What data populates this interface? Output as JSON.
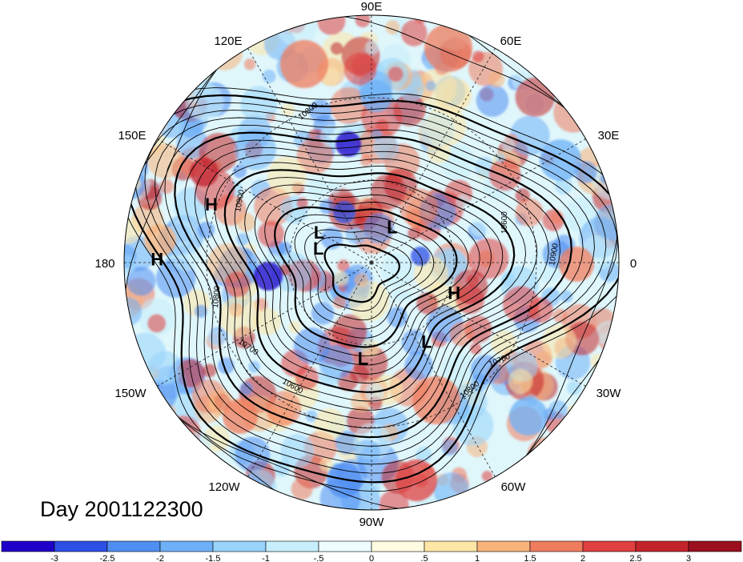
{
  "map": {
    "day_label": "Day 2001122300",
    "longitude_labels": [
      "90E",
      "60E",
      "30E",
      "0",
      "30W",
      "60W",
      "90W",
      "120W",
      "150W",
      "180",
      "150E",
      "120E"
    ],
    "pressure_centers": [
      {
        "label": "H",
        "lon": 160,
        "lat": 28
      },
      {
        "label": "H",
        "lon": 179,
        "lat": 12
      },
      {
        "label": "L",
        "lon": 150,
        "lat": 68
      },
      {
        "label": "L",
        "lon": 165,
        "lat": 70
      },
      {
        "label": "L",
        "lon": 60,
        "lat": 75
      },
      {
        "label": "H",
        "lon": -20,
        "lat": 58
      },
      {
        "label": "L",
        "lon": -55,
        "lat": 55
      },
      {
        "label": "L",
        "lon": -95,
        "lat": 55
      }
    ],
    "contour_labels": [
      "10800",
      "10900",
      "10800",
      "10700",
      "10600",
      "10600",
      "10900",
      "10700",
      "10800"
    ],
    "contour_levels": [
      10600,
      10700,
      10800,
      10900
    ],
    "palette": [
      "#1e00c8",
      "#2d4fe6",
      "#4f8ef2",
      "#6eb0f7",
      "#97d3fb",
      "#c6eefc",
      "#eefcff",
      "#fffbe0",
      "#fde6a6",
      "#f8b37a",
      "#f07c5e",
      "#e04040",
      "#c3242b",
      "#9b0f1e"
    ]
  },
  "colorbar": {
    "tick_labels": [
      "-3",
      "-2.5",
      "-2",
      "-1.5",
      "-1",
      "-.5",
      "0",
      ".5",
      "1",
      "1.5",
      "2",
      "2.5",
      "3"
    ]
  }
}
